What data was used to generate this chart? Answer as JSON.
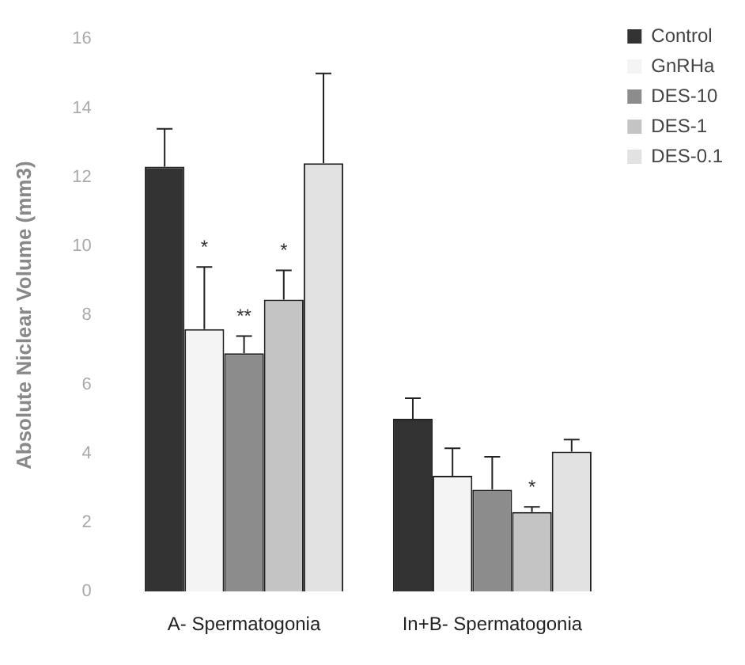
{
  "chart_data": {
    "type": "bar",
    "ylabel": "Absolute Niclear Volume (mm3)",
    "categories": [
      "A- Spermatogonia",
      "In+B- Spermatogonia"
    ],
    "series": [
      {
        "name": "Control",
        "color": "#333333",
        "values": [
          12.3,
          5.0
        ],
        "errors": [
          [
            12.3,
            13.4
          ],
          [
            5.0,
            5.6
          ]
        ]
      },
      {
        "name": "GnRHa",
        "color": "#f4f4f4",
        "values": [
          7.6,
          3.35
        ],
        "errors": [
          [
            7.6,
            9.4
          ],
          [
            3.35,
            4.15
          ]
        ]
      },
      {
        "name": "DES-10",
        "color": "#8c8c8c",
        "values": [
          6.9,
          2.95
        ],
        "errors": [
          [
            6.9,
            7.4
          ],
          [
            2.95,
            3.9
          ]
        ]
      },
      {
        "name": "DES-1",
        "color": "#c4c4c4",
        "values": [
          8.45,
          2.3
        ],
        "errors": [
          [
            8.45,
            9.3
          ],
          [
            2.3,
            2.45
          ]
        ]
      },
      {
        "name": "DES-0.1",
        "color": "#e2e2e2",
        "values": [
          12.4,
          4.05
        ],
        "errors": [
          [
            12.4,
            15.0
          ],
          [
            4.05,
            4.4
          ]
        ]
      }
    ],
    "ylim": [
      0,
      16
    ],
    "yticks": [
      0,
      2,
      4,
      6,
      8,
      10,
      12,
      14,
      16
    ],
    "grid": false,
    "legend": "top right",
    "annotations": [
      "*",
      "**",
      "*",
      "*"
    ]
  }
}
